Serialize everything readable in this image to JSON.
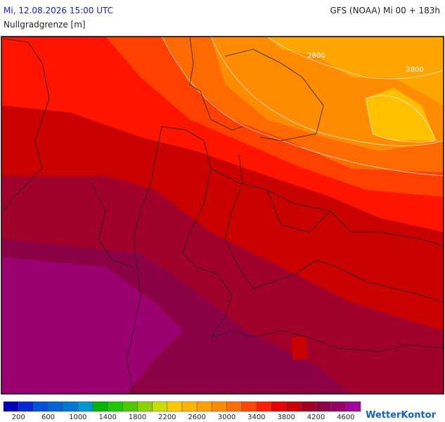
{
  "header": {
    "datetime": "Mi, 12.08.2026 15:00 UTC",
    "model": "GFS (NOAA) Mi 00 + 183h",
    "parameter": "Nullgradgrenze [m]"
  },
  "map": {
    "contour_labels": [
      "2800",
      "2800"
    ]
  },
  "legend": {
    "colors": [
      "#0000b4",
      "#0028d2",
      "#0050dc",
      "#0064d2",
      "#0078d2",
      "#0096d2",
      "#00b400",
      "#1ec800",
      "#50c800",
      "#8cd200",
      "#c8dc00",
      "#ffc800",
      "#ffb400",
      "#ffa000",
      "#ff8c00",
      "#ff6e00",
      "#ff4600",
      "#ff1e00",
      "#e60000",
      "#c80000",
      "#a0001e",
      "#8c0046",
      "#960064",
      "#a0009b"
    ],
    "labels": [
      200,
      600,
      1000,
      1400,
      1800,
      2200,
      2600,
      3000,
      3400,
      3800,
      4200,
      4600
    ]
  },
  "logo": "WetterKontor"
}
